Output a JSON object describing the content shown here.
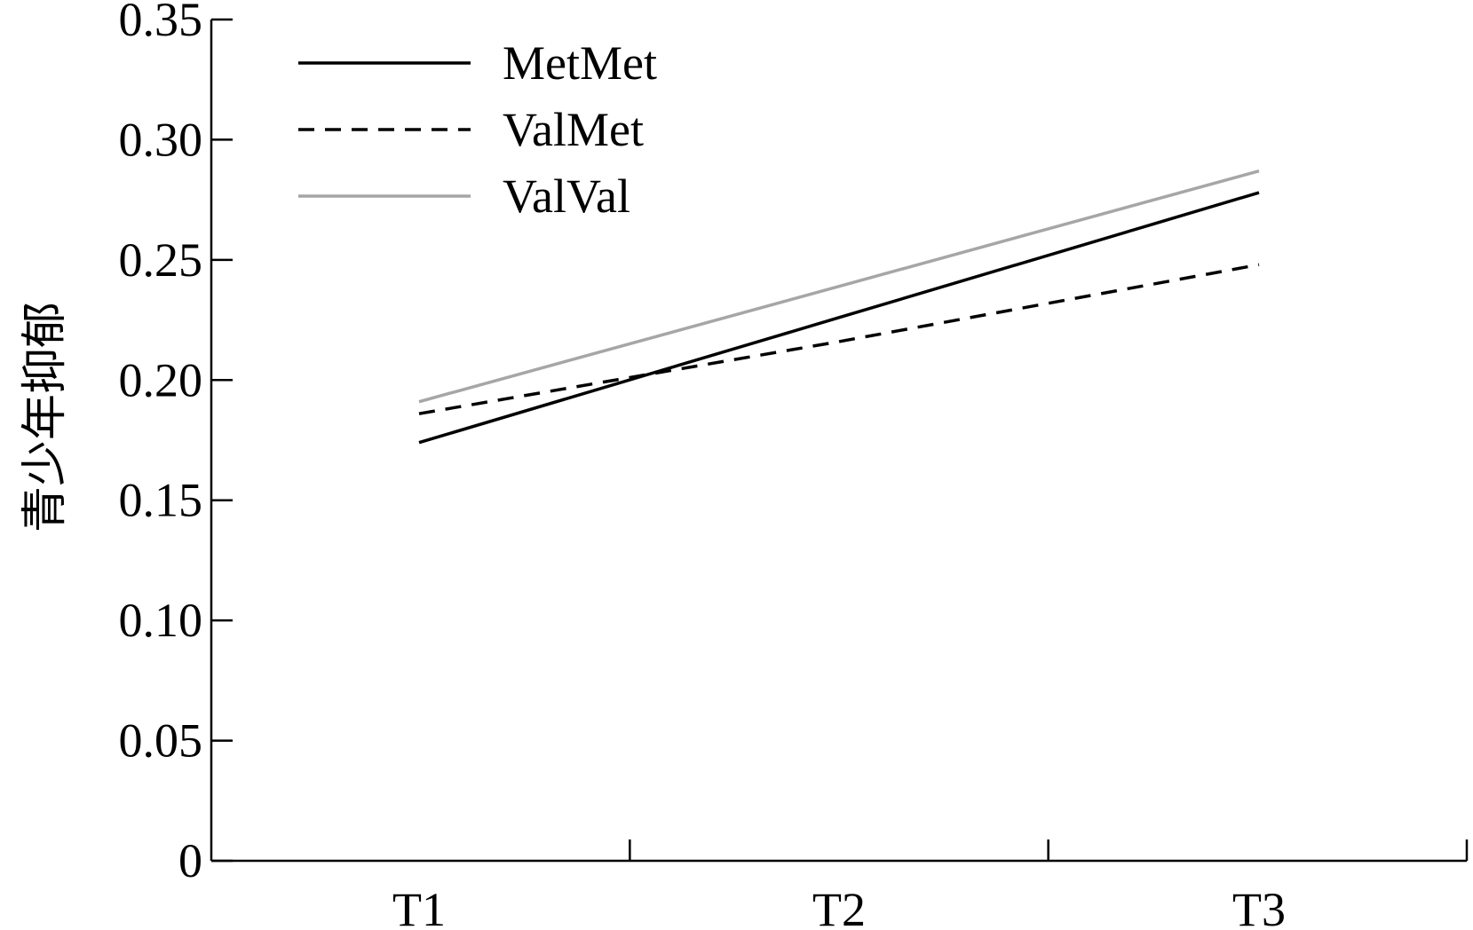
{
  "chart_data": {
    "type": "line",
    "title": "",
    "xlabel": "",
    "ylabel": "青少年抑郁",
    "categories": [
      "T1",
      "T2",
      "T3"
    ],
    "ylim": [
      0,
      0.35
    ],
    "yticks": [
      "0",
      "0.05",
      "0.10",
      "0.15",
      "0.20",
      "0.25",
      "0.30",
      "0.35"
    ],
    "grid": false,
    "legend_position": "top-left",
    "series": [
      {
        "name": "MetMet",
        "values": [
          0.174,
          0.226,
          0.278
        ],
        "color": "#000000",
        "style": "solid"
      },
      {
        "name": "ValMet",
        "values": [
          0.186,
          0.216,
          0.248
        ],
        "color": "#000000",
        "style": "dashed"
      },
      {
        "name": "ValVal",
        "values": [
          0.191,
          0.239,
          0.287
        ],
        "color": "#a6a6a6",
        "style": "solid"
      }
    ]
  }
}
